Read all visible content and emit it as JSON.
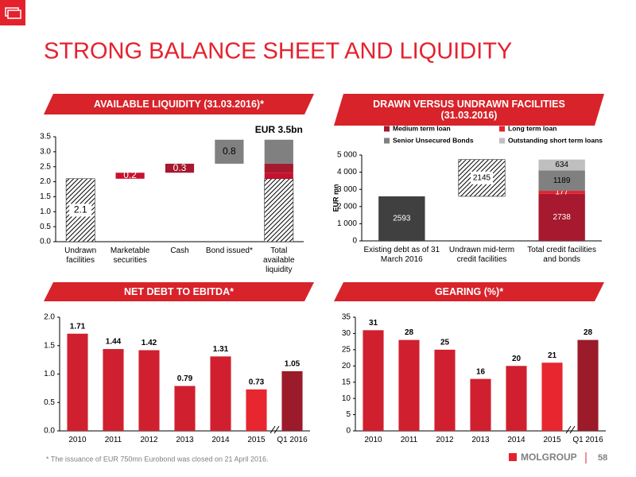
{
  "header": {
    "title": "STRONG BALANCE SHEET AND LIQUIDITY"
  },
  "footer": {
    "note": "* The issuance of EUR 750mn Eurobond was  closed on 21 April 2016.",
    "logo": "MOLGROUP",
    "page": "58"
  },
  "chart_data": [
    {
      "type": "waterfall",
      "title": "AVAILABLE LIQUIDITY (31.03.2016)*",
      "annotation": "EUR 3.5bn",
      "categories": [
        "Undrawn facilities",
        "Marketable securities",
        "Cash",
        "Bond issued*",
        "Total available liquidity"
      ],
      "values": [
        2.1,
        0.2,
        0.3,
        0.8,
        null
      ],
      "colors": [
        "#ffffff",
        "#c8102e",
        "#a6192e",
        "#808080",
        null
      ],
      "hatched": [
        true,
        false,
        false,
        false,
        false
      ],
      "ylim": [
        0,
        3.5
      ],
      "yticks": [
        {
          "value": 0,
          "label": "0.0"
        },
        0.5,
        {
          "value": 1,
          "label": "1.0"
        },
        1.5,
        {
          "value": 2,
          "label": "2.0"
        },
        2.5,
        {
          "value": 3,
          "label": "3.0"
        },
        3.5
      ],
      "grid": false
    },
    {
      "type": "stacked_bar",
      "title": "DRAWN VERSUS UNDRAWN FACILITIES (31.03.2016)",
      "y_label": "EUR mn",
      "categories": [
        "Existing debt as of 31 March 2016",
        "Undrawn mid-term credit facilities",
        "Total credit facilities and bonds"
      ],
      "values": [
        2593,
        2145,
        null
      ],
      "colors": [
        "#404040",
        "#ffffff",
        null
      ],
      "hatched": [
        false,
        true,
        false
      ],
      "series": [
        {
          "name": "Medium term loan",
          "color": "#a6192e",
          "values": [
            null,
            null,
            2738
          ]
        },
        {
          "name": "Long term loan",
          "color": "#e4222e",
          "values": [
            null,
            null,
            177
          ]
        },
        {
          "name": "Senior Unsecured Bonds",
          "color": "#808080",
          "values": [
            null,
            null,
            1189
          ]
        },
        {
          "name": "Outstanding short term loans",
          "color": "#bfbfbf",
          "values": [
            null,
            null,
            634
          ]
        }
      ],
      "legend": "top",
      "ylim": [
        0,
        5000
      ],
      "yticks": [
        0,
        {
          "value": 1000,
          "label": "1 000"
        },
        {
          "value": 2000,
          "label": "2 000"
        },
        {
          "value": 3000,
          "label": "3 000"
        },
        {
          "value": 4000,
          "label": "4 000"
        },
        {
          "value": 5000,
          "label": "5 000"
        }
      ],
      "grid": false
    },
    {
      "type": "bar",
      "title": "NET DEBT TO EBITDA*",
      "categories": [
        "2010",
        "2011",
        "2012",
        "2013",
        "2014",
        "2015",
        "Q1 2016"
      ],
      "values": [
        1.71,
        1.44,
        1.42,
        0.79,
        1.31,
        0.73,
        1.05
      ],
      "colors": [
        "#d0202f",
        "#d0202f",
        "#d0202f",
        "#d0202f",
        "#d0202f",
        "#e8262f",
        "#9b1b2a"
      ],
      "ylim": [
        0,
        2
      ],
      "yticks": [
        {
          "value": 0,
          "label": "0.0"
        },
        0.5,
        {
          "value": 1,
          "label": "1.0"
        },
        1.5,
        {
          "value": 2,
          "label": "2.0"
        }
      ],
      "grid": false
    },
    {
      "type": "bar",
      "title": "GEARING (%)*",
      "categories": [
        "2010",
        "2011",
        "2012",
        "2013",
        "2014",
        "2015",
        "Q1 2016"
      ],
      "values": [
        31,
        28,
        25,
        16,
        20,
        21,
        28
      ],
      "colors": [
        "#d0202f",
        "#d0202f",
        "#d0202f",
        "#d0202f",
        "#d0202f",
        "#e8262f",
        "#9b1b2a"
      ],
      "ylim": [
        0,
        35
      ],
      "yticks": [
        0,
        5,
        10,
        15,
        20,
        25,
        30,
        35
      ],
      "grid": false
    }
  ]
}
